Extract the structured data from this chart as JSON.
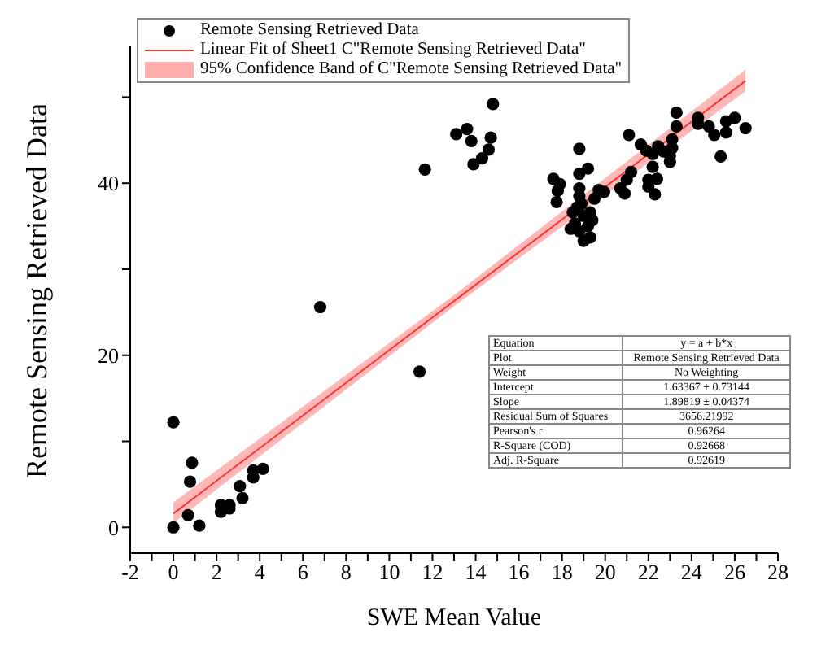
{
  "chart_data": {
    "type": "scatter",
    "xlabel": "SWE Mean Value",
    "ylabel": "Remote Sensing Retrieved Data",
    "xlim": [
      -2,
      28
    ],
    "xticks": [
      -2,
      {
        "value": -1,
        "label": null
      },
      0,
      {
        "value": 1,
        "label": null
      },
      2,
      {
        "value": 3,
        "label": null
      },
      4,
      {
        "value": 5,
        "label": null
      },
      6,
      {
        "value": 7,
        "label": null
      },
      8,
      {
        "value": 9,
        "label": null
      },
      10,
      {
        "value": 11,
        "label": null
      },
      12,
      {
        "value": 13,
        "label": null
      },
      14,
      {
        "value": 15,
        "label": null
      },
      16,
      {
        "value": 17,
        "label": null
      },
      18,
      {
        "value": 19,
        "label": null
      },
      20,
      {
        "value": 21,
        "label": null
      },
      22,
      {
        "value": 23,
        "label": null
      },
      24,
      {
        "value": 25,
        "label": null
      },
      26,
      {
        "value": 27,
        "label": null
      },
      28
    ],
    "ylim": [
      -3,
      56
    ],
    "yticks": [
      0,
      {
        "value": 10,
        "label": null
      },
      20,
      {
        "value": 30,
        "label": null
      },
      40,
      {
        "value": 50,
        "label": null
      }
    ],
    "grid": false,
    "legend": "top left",
    "line_style": "solid",
    "series": [
      {
        "type": "line",
        "marker": "none",
        "name": "Linear Fit of Sheet1 C\"Remote Sensing Retrieved Data\"",
        "color": "#ff3333",
        "x": [
          0,
          13,
          26.5
        ],
        "values": [
          1.6,
          26.3,
          51.9
        ],
        "lower": [
          0.5,
          25.7,
          50.7
        ],
        "upper": [
          2.9,
          27.0,
          53.2
        ]
      },
      {
        "marker": "circle",
        "name": "Remote Sensing Retrieved Data",
        "color": "#000000",
        "x": [
          0,
          0.86,
          0.77,
          0.68,
          0,
          1.2,
          2.2,
          2.2,
          2.6,
          2.6,
          3.08,
          3.2,
          3.7,
          3.7,
          4.15,
          6.8,
          11.4,
          11.65,
          13.1,
          13.6,
          13.8,
          13.9,
          14.3,
          14.6,
          14.7,
          14.8,
          17.6,
          17.9,
          17.8,
          17.75,
          18.8,
          18.8,
          19.2,
          18.8,
          18.8,
          18.5,
          18.7,
          18.9,
          18.4,
          18.6,
          18.8,
          19.0,
          19.3,
          19.2,
          19.4,
          19.0,
          19.5,
          19.7,
          19.95,
          19.3,
          20.7,
          20.9,
          21.0,
          21.2,
          21.1,
          21.65,
          21.9,
          22.2,
          22.0,
          22.0,
          22.3,
          22.4,
          22.2,
          22.45,
          22.7,
          23.0,
          23.0,
          23.1,
          23.1,
          23.3,
          23.3,
          24.3,
          24.3,
          24.8,
          25.05,
          25.35,
          25.6,
          25.6,
          26.0,
          26.5
        ],
        "values": [
          12.2,
          7.5,
          5.3,
          1.4,
          0,
          0.2,
          2.6,
          1.8,
          2.6,
          2.2,
          4.8,
          3.4,
          5.8,
          6.6,
          6.8,
          25.6,
          18.1,
          41.6,
          45.7,
          46.3,
          44.9,
          42.2,
          42.9,
          43.9,
          45.3,
          49.2,
          40.5,
          39.9,
          39.1,
          37.8,
          44.0,
          41.1,
          41.7,
          39.4,
          38.5,
          36.6,
          37.2,
          37.6,
          34.7,
          35.3,
          34.4,
          33.3,
          33.7,
          35.0,
          35.7,
          36.2,
          38.2,
          39.2,
          39.0,
          36.6,
          39.4,
          38.8,
          40.4,
          41.3,
          45.6,
          44.5,
          43.8,
          41.9,
          40.4,
          39.6,
          38.7,
          40.5,
          43.4,
          44.3,
          43.7,
          43.2,
          42.5,
          44.1,
          45.1,
          46.6,
          48.2,
          47.6,
          46.9,
          46.6,
          45.6,
          43.1,
          45.9,
          47.2,
          47.6,
          46.4
        ]
      }
    ],
    "annotations": [
      "95% Confidence Band of C\"Remote Sensing Retrieved Data\"",
      "Equation",
      "y = a + b*x",
      "Plot",
      "Remote Sensing Retrieved Data",
      "Weight",
      "No Weighting",
      "Intercept",
      "1.63367 ± 0.73144",
      "Slope",
      "1.89819 ± 0.04374",
      "Residual Sum of Squares",
      "3656.21992",
      "Pearson's r",
      "0.96264",
      "R-Square (COD)",
      "0.92668",
      "Adj. R-Square",
      "0.92619"
    ]
  }
}
